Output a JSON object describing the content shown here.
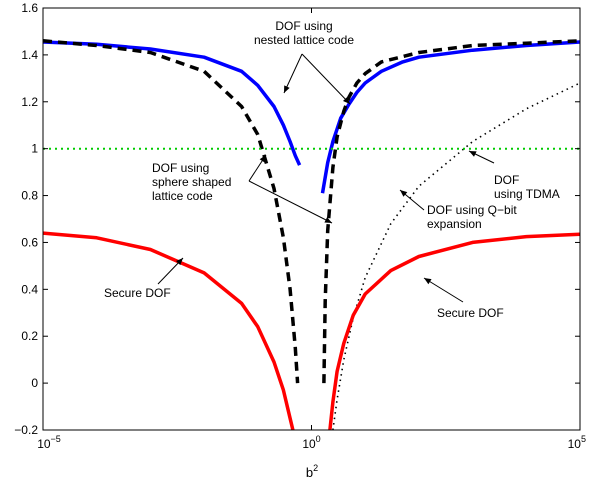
{
  "chart_data": {
    "type": "line",
    "xlabel": "b",
    "xlabel_superscript": "2",
    "xscale": "log",
    "xlim": [
      1e-05,
      100000
    ],
    "ylim": [
      -0.2,
      1.6
    ],
    "grid": false,
    "legend": "none",
    "x_ticks": [
      {
        "value": 1e-05,
        "base": "10",
        "exp": "−5"
      },
      {
        "value": 1,
        "base": "10",
        "exp": "0"
      },
      {
        "value": 100000,
        "base": "10",
        "exp": "5"
      }
    ],
    "y_ticks": [
      {
        "value": -0.2,
        "label": "−0.2"
      },
      {
        "value": 0,
        "label": "0"
      },
      {
        "value": 0.2,
        "label": "0.2"
      },
      {
        "value": 0.4,
        "label": "0.4"
      },
      {
        "value": 0.6,
        "label": "0.6"
      },
      {
        "value": 0.8,
        "label": "0.8"
      },
      {
        "value": 1,
        "label": "1"
      },
      {
        "value": 1.2,
        "label": "1.2"
      },
      {
        "value": 1.4,
        "label": "1.4"
      },
      {
        "value": 1.6,
        "label": "1.6"
      }
    ],
    "series": [
      {
        "key": "nested",
        "color": "#0000ff",
        "style": "solid",
        "segments": [
          {
            "x": [
              1e-05,
              0.0001,
              0.001,
              0.01,
              0.05,
              0.1,
              0.2,
              0.3,
              0.4,
              0.5,
              0.6
            ],
            "y": [
              1.455,
              1.445,
              1.425,
              1.39,
              1.33,
              1.27,
              1.18,
              1.1,
              1.03,
              0.97,
              0.93
            ]
          },
          {
            "x": [
              1.6,
              2,
              2.5,
              3.5,
              5,
              7,
              10,
              20,
              50,
              100,
              1000,
              10000,
              100000
            ],
            "y": [
              0.81,
              0.94,
              1.03,
              1.13,
              1.19,
              1.24,
              1.28,
              1.33,
              1.37,
              1.39,
              1.42,
              1.44,
              1.455
            ]
          }
        ]
      },
      {
        "key": "sphere",
        "color": "#000000",
        "style": "dashed",
        "segments": [
          {
            "x": [
              1e-05,
              0.0001,
              0.001,
              0.01,
              0.05,
              0.1,
              0.2,
              0.3,
              0.4,
              0.5,
              0.55
            ],
            "y": [
              1.46,
              1.44,
              1.41,
              1.33,
              1.18,
              1.06,
              0.83,
              0.62,
              0.4,
              0.15,
              0.0
            ]
          },
          {
            "x": [
              1.7,
              1.8,
              2.0,
              2.5,
              3,
              4,
              5,
              7,
              10,
              20,
              100,
              1000,
              10000,
              100000
            ],
            "y": [
              0.0,
              0.35,
              0.65,
              0.92,
              1.05,
              1.16,
              1.22,
              1.28,
              1.32,
              1.37,
              1.41,
              1.44,
              1.45,
              1.46
            ]
          }
        ]
      },
      {
        "key": "qbit",
        "color": "#000000",
        "style": "dotted",
        "segments": [
          {
            "x": [
              2.5,
              3,
              4,
              6,
              10,
              30,
              100,
              1000,
              10000,
              100000
            ],
            "y": [
              -0.2,
              -0.07,
              0.1,
              0.28,
              0.45,
              0.68,
              0.84,
              1.03,
              1.17,
              1.28
            ]
          }
        ]
      },
      {
        "key": "tdma",
        "color": "#00cc00",
        "style": "dotted",
        "segments": [
          {
            "x": [
              1e-05,
              100000
            ],
            "y": [
              1,
              1
            ]
          }
        ]
      },
      {
        "key": "secure",
        "color": "#ff0000",
        "style": "solid",
        "segments": [
          {
            "x": [
              1e-05,
              0.0001,
              0.001,
              0.01,
              0.05,
              0.1,
              0.2,
              0.3,
              0.4,
              0.45
            ],
            "y": [
              0.64,
              0.62,
              0.57,
              0.47,
              0.34,
              0.24,
              0.09,
              -0.03,
              -0.15,
              -0.2
            ]
          },
          {
            "x": [
              2.2,
              2.5,
              3,
              4,
              6,
              10,
              30,
              100,
              1000,
              10000,
              100000
            ],
            "y": [
              -0.2,
              -0.08,
              0.05,
              0.17,
              0.29,
              0.38,
              0.48,
              0.54,
              0.6,
              0.625,
              0.635
            ]
          }
        ]
      }
    ],
    "annotations": [
      {
        "key": "nested",
        "lines": [
          "DOF using",
          "nested lattice code"
        ]
      },
      {
        "key": "sphere",
        "lines": [
          "DOF using",
          "sphere shaped",
          "lattice code"
        ]
      },
      {
        "key": "tdma",
        "lines": [
          "DOF",
          "using TDMA"
        ]
      },
      {
        "key": "qbit",
        "lines": [
          "DOF using Q−bit",
          "expansion"
        ]
      },
      {
        "key": "secure_left",
        "lines": [
          "Secure DOF"
        ]
      },
      {
        "key": "secure_right",
        "lines": [
          "Secure DOF"
        ]
      }
    ]
  }
}
